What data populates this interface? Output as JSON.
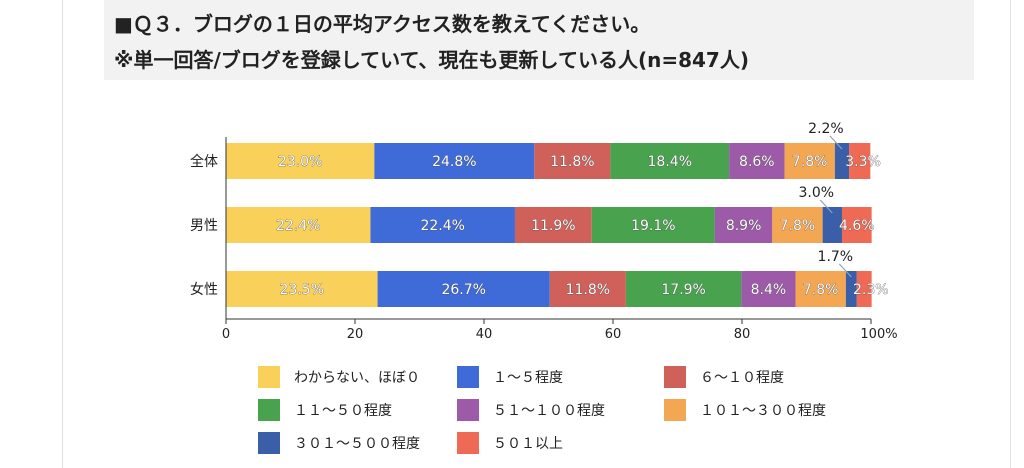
{
  "header": {
    "line1": "■Ｑ３．ブログの１日の平均アクセス数を教えてください。",
    "line2": "※単一回答/ブログを登録していて、現在も更新している人(n=847人)"
  },
  "chart_data": {
    "type": "bar",
    "orientation": "horizontal",
    "stacked": true,
    "categories": [
      "全体",
      "男性",
      "女性"
    ],
    "series": [
      {
        "name": "わからない、ほぼ０",
        "color": "#f8d05a",
        "values": [
          23.0,
          22.4,
          23.5
        ],
        "labels": [
          "23.0%",
          "22.4%",
          "23.5%"
        ]
      },
      {
        "name": "１～５程度",
        "color": "#3f6bd8",
        "values": [
          24.8,
          22.4,
          26.7
        ],
        "labels": [
          "24.8%",
          "22.4%",
          "26.7%"
        ]
      },
      {
        "name": "６～１０程度",
        "color": "#d0605a",
        "values": [
          11.8,
          11.9,
          11.8
        ],
        "labels": [
          "11.8%",
          "11.9%",
          "11.8%"
        ]
      },
      {
        "name": "１１～５０程度",
        "color": "#48a24e",
        "values": [
          18.4,
          19.1,
          17.9
        ],
        "labels": [
          "18.4%",
          "19.1%",
          "17.9%"
        ]
      },
      {
        "name": "５１～１００程度",
        "color": "#9d5aa8",
        "values": [
          8.6,
          8.9,
          8.4
        ],
        "labels": [
          "8.6%",
          "8.9%",
          "8.4%"
        ]
      },
      {
        "name": "１０１～３００程度",
        "color": "#f4a752",
        "values": [
          7.8,
          7.8,
          7.8
        ],
        "labels": [
          "7.8%",
          "7.8%",
          "7.8%"
        ]
      },
      {
        "name": "３０１～５００程度",
        "color": "#3a5ea8",
        "values": [
          2.2,
          3.0,
          1.7
        ],
        "labels": [
          "2.2%",
          "3.0%",
          "1.7%"
        ]
      },
      {
        "name": "５０１以上",
        "color": "#ee6a55",
        "values": [
          3.3,
          4.6,
          2.3
        ],
        "labels": [
          "3.3%",
          "4.6%",
          "2.3%"
        ]
      }
    ],
    "xlim": [
      0,
      100
    ],
    "xticks": [
      "0",
      "20",
      "40",
      "60",
      "80",
      "100%"
    ],
    "grid": false,
    "legend_position": "bottom"
  }
}
